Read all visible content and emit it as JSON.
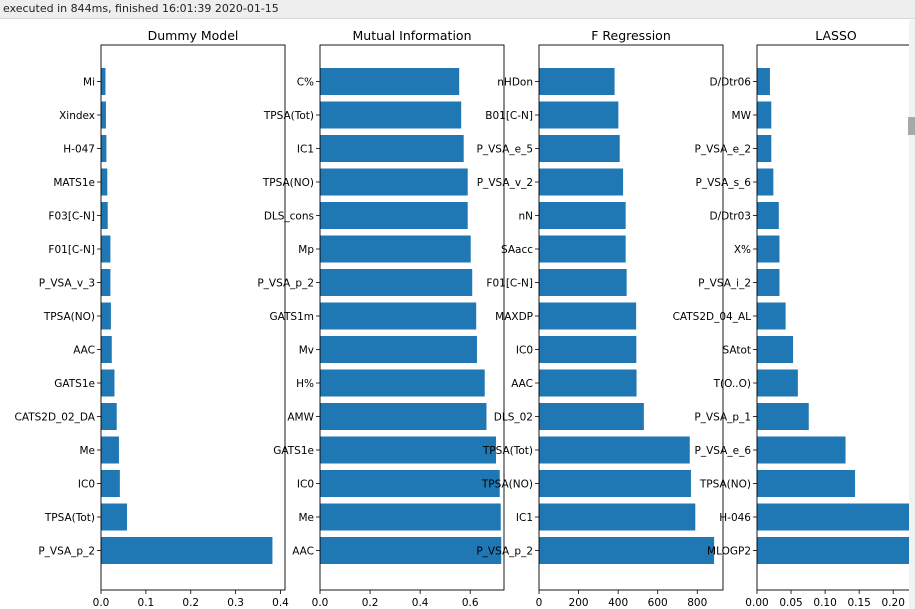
{
  "status": {
    "execution_text": "executed in 844ms, finished 16:01:39 2020-01-15"
  },
  "colors": {
    "bar": "#1f77b4",
    "axis": "#000000",
    "background": "#ffffff"
  },
  "chart_data": [
    {
      "type": "bar",
      "orientation": "horizontal",
      "title": "Dummy Model",
      "xlabel": "",
      "ylabel": "",
      "categories": [
        "P_VSA_p_2",
        "TPSA(Tot)",
        "IC0",
        "Me",
        "CATS2D_02_DA",
        "GATS1e",
        "AAC",
        "TPSA(NO)",
        "P_VSA_v_3",
        "F01[C-N]",
        "F03[C-N]",
        "MATS1e",
        "H-047",
        "Xindex",
        "Mi"
      ],
      "values": [
        0.382,
        0.058,
        0.042,
        0.04,
        0.035,
        0.03,
        0.024,
        0.022,
        0.021,
        0.021,
        0.015,
        0.014,
        0.012,
        0.011,
        0.01
      ],
      "xlim": [
        0,
        0.41
      ],
      "xticks": [
        0.0,
        0.1,
        0.2,
        0.3,
        0.4
      ],
      "xticklabels": [
        "0.0",
        "0.1",
        "0.2",
        "0.3",
        "0.4"
      ],
      "grid": false
    },
    {
      "type": "bar",
      "orientation": "horizontal",
      "title": "Mutual Information",
      "xlabel": "",
      "ylabel": "",
      "categories": [
        "AAC",
        "Me",
        "IC0",
        "GATS1e",
        "AMW",
        "H%",
        "Mv",
        "GATS1m",
        "P_VSA_p_2",
        "Mp",
        "DLS_cons",
        "TPSA(NO)",
        "IC1",
        "TPSA(Tot)",
        "C%"
      ],
      "values": [
        0.724,
        0.722,
        0.718,
        0.703,
        0.665,
        0.658,
        0.627,
        0.624,
        0.608,
        0.602,
        0.59,
        0.59,
        0.574,
        0.564,
        0.556
      ],
      "xlim": [
        0,
        0.735
      ],
      "xticks": [
        0.0,
        0.2,
        0.4,
        0.6
      ],
      "xticklabels": [
        "0.0",
        "0.2",
        "0.4",
        "0.6"
      ],
      "grid": false
    },
    {
      "type": "bar",
      "orientation": "horizontal",
      "title": "F Regression",
      "xlabel": "",
      "ylabel": "",
      "categories": [
        "P_VSA_p_2",
        "IC1",
        "TPSA(NO)",
        "TPSA(Tot)",
        "DLS_02",
        "AAC",
        "IC0",
        "MAXDP",
        "F01[C-N]",
        "SAacc",
        "nN",
        "P_VSA_v_2",
        "P_VSA_e_5",
        "B01[C-N]",
        "nHDon"
      ],
      "values": [
        885,
        790,
        768,
        762,
        530,
        493,
        492,
        491,
        443,
        438,
        438,
        425,
        408,
        401,
        382
      ],
      "xlim": [
        0,
        930
      ],
      "xticks": [
        0,
        200,
        400,
        600,
        800
      ],
      "xticklabels": [
        "0",
        "200",
        "400",
        "600",
        "800"
      ],
      "grid": false
    },
    {
      "type": "bar",
      "orientation": "horizontal",
      "title": "LASSO",
      "xlabel": "",
      "ylabel": "",
      "categories": [
        "MLOGP2",
        "H-046",
        "TPSA(NO)",
        "P_VSA_e_6",
        "P_VSA_p_1",
        "T(O..O)",
        "SAtot",
        "CATS2D_04_AL",
        "P_VSA_i_2",
        "X%",
        "D/Dtr03",
        "P_VSA_s_6",
        "P_VSA_e_2",
        "MW",
        "D/Dtr06"
      ],
      "values": [
        0.238,
        0.232,
        0.144,
        0.13,
        0.076,
        0.06,
        0.053,
        0.042,
        0.033,
        0.033,
        0.032,
        0.024,
        0.021,
        0.021,
        0.019
      ],
      "xlim": [
        0,
        0.232
      ],
      "xticks": [
        0.0,
        0.05,
        0.1,
        0.15,
        0.2
      ],
      "xticklabels": [
        "0.00",
        "0.05",
        "0.10",
        "0.15",
        "0.20"
      ],
      "grid": false
    }
  ]
}
